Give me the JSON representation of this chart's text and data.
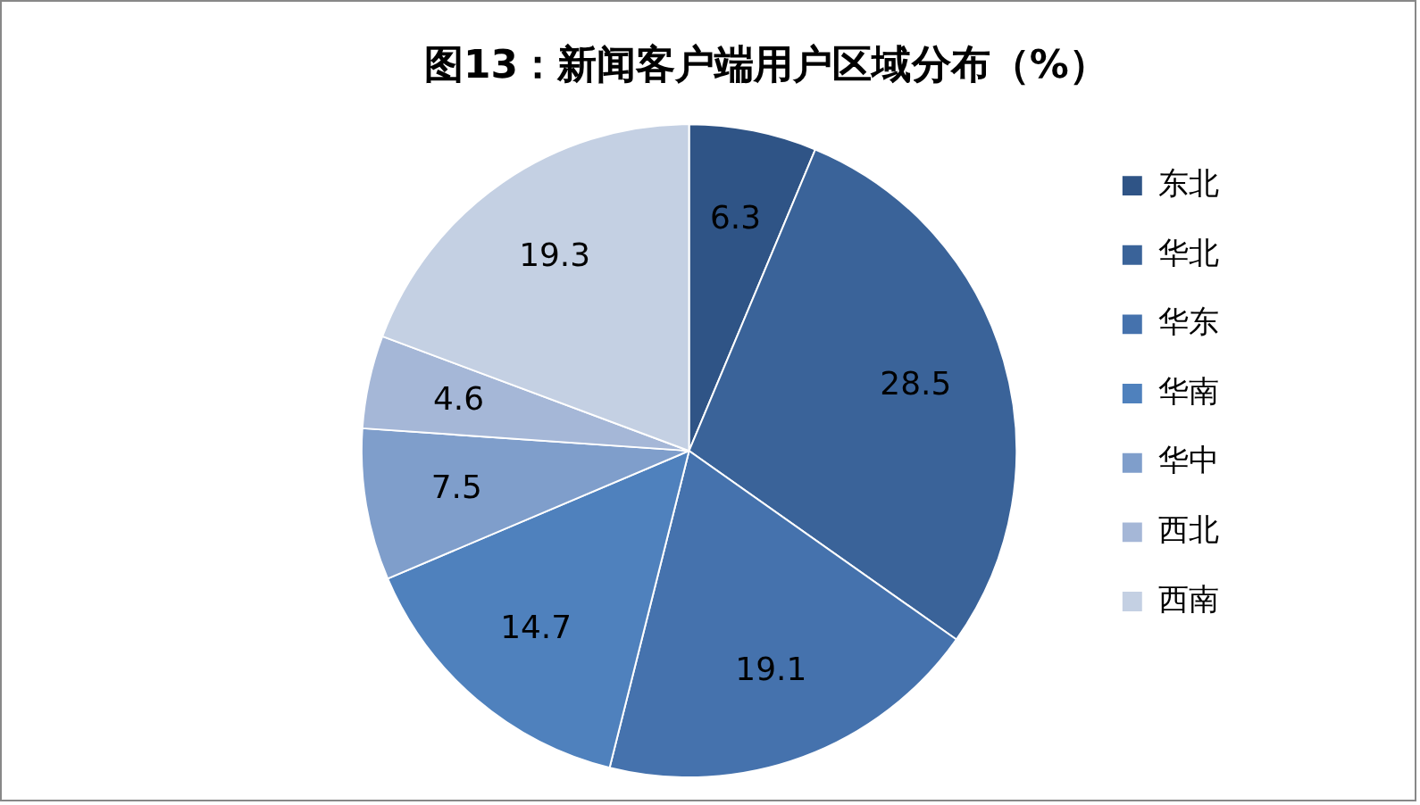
{
  "chart_data": {
    "type": "pie",
    "title": "图13：新闻客户端用户区域分布（%）",
    "categories": [
      "东北",
      "华北",
      "华东",
      "华南",
      "华中",
      "西北",
      "西南"
    ],
    "values": [
      6.3,
      28.5,
      19.1,
      14.7,
      7.5,
      4.6,
      19.3
    ],
    "colors": [
      "#2f5486",
      "#3a6399",
      "#4572ad",
      "#4f81bd",
      "#7f9ecb",
      "#a5b7d7",
      "#c4d0e3"
    ],
    "data_labels": true,
    "legend": "right"
  }
}
